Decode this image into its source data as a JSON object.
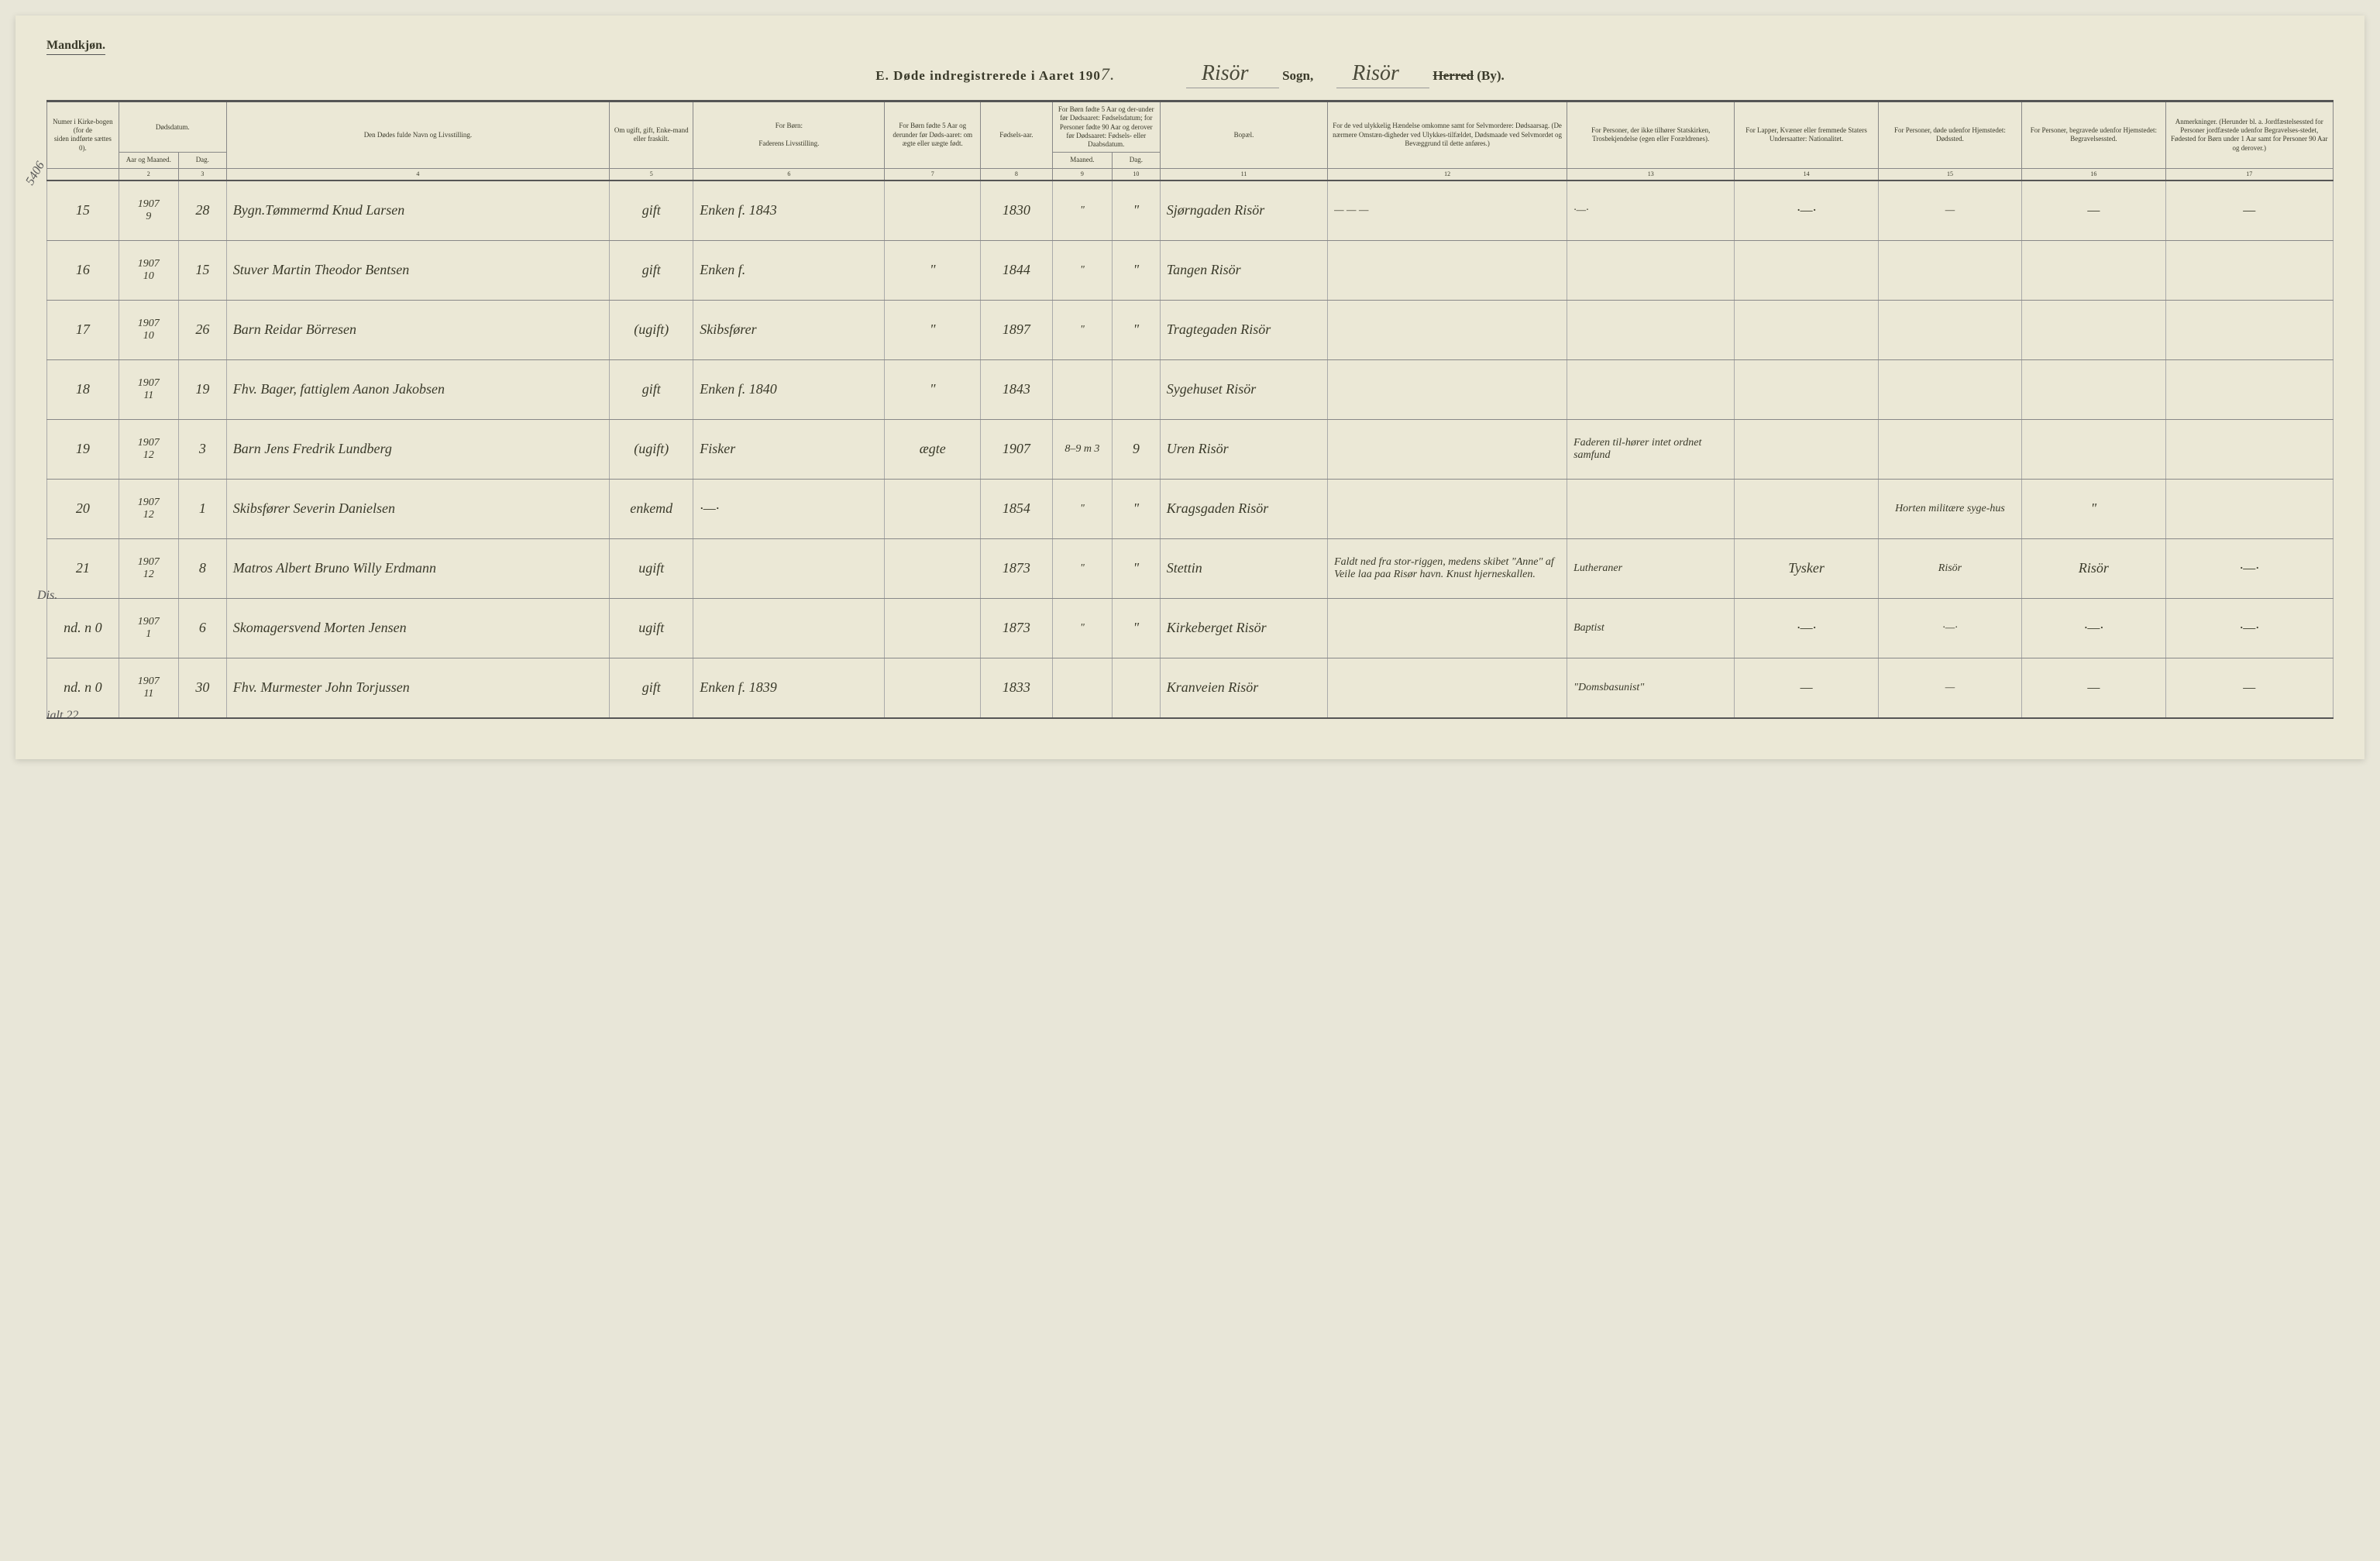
{
  "header": {
    "gender": "Mandkjøn.",
    "title_prefix": "E.  Døde indregistrerede i Aaret 190",
    "year_suffix": "7.",
    "sogn_value": "Risör",
    "sogn_label": "Sogn,",
    "herred_value": "Risör",
    "herred_strike": "Herred",
    "herred_by": "(By)."
  },
  "columns": {
    "c1a": "Numer i Kirke-bogen (for de",
    "c1b": "siden indførte sættes 0).",
    "c2": "Dødsdatum.",
    "c2a": "Aar og Maaned.",
    "c2b": "Dag.",
    "c4a": "Den Dødes fulde Navn og Livsstilling.",
    "c5": "Om ugift, gift, Enke-mand eller fraskilt.",
    "c6a": "For Børn:",
    "c6b": "Faderens Livsstilling.",
    "c7": "For Børn fødte 5 Aar og derunder før Døds-aaret: om ægte eller uægte født.",
    "c8": "Fødsels-aar.",
    "c9": "For Børn fødte 5 Aar og der-under før Dødsaaret: Fødselsdatum; for Personer fødte 90 Aar og derover før Dødsaaret: Fødsels- eller Daabsdatum.",
    "c9a": "Maaned.",
    "c9b": "Dag.",
    "c11": "Bopæl.",
    "c12": "For de ved ulykkelig Hændelse omkomne samt for Selvmordere: Dødsaarsag. (De nærmere Omstæn-digheder ved Ulykkes-tilfældet, Dødsmaade ved Selvmordet og Bevæggrund til dette anføres.)",
    "c13": "For Personer, der ikke tilhører Statskirken, Trosbekjendelse (egen eller Forældrenes).",
    "c14": "For Lapper, Kvæner eller fremmede Staters Undersaatter: Nationalitet.",
    "c15": "For Personer, døde udenfor Hjemstedet: Dødssted.",
    "c16": "For Personer, begravede udenfor Hjemstedet: Begravelsessted.",
    "c17": "Anmerkninger. (Herunder bl. a. Jordfæstelsessted for Personer jordfæstede udenfor Begravelses-stedet, Fødested for Børn under 1 Aar samt for Personer 90 Aar og derover.)"
  },
  "colnums": [
    "",
    "2",
    "3",
    "4",
    "5",
    "6",
    "7",
    "8",
    "9",
    "10",
    "11",
    "12",
    "13",
    "14",
    "15",
    "16",
    "17"
  ],
  "rows": [
    {
      "num": "15",
      "yr": "1907",
      "mo": "9",
      "day": "28",
      "name": "Bygn.Tømmermd Knud Larsen",
      "status": "gift",
      "father": "Enken f. 1843",
      "legit": "",
      "born": "1830",
      "bm": "\"",
      "bd": "\"",
      "place": "Sjørngaden Risör",
      "cause": "— — —",
      "faith": "·—·",
      "nat": "·—·",
      "dplace": "—",
      "bplace": "—",
      "note": "—"
    },
    {
      "num": "16",
      "yr": "1907",
      "mo": "10",
      "day": "15",
      "name": "Stuver Martin Theodor Bentsen",
      "status": "gift",
      "father": "Enken f.",
      "legit": "\"",
      "born": "1844",
      "bm": "\"",
      "bd": "\"",
      "place": "Tangen Risör",
      "cause": "",
      "faith": "",
      "nat": "",
      "dplace": "",
      "bplace": "",
      "note": ""
    },
    {
      "num": "17",
      "yr": "1907",
      "mo": "10",
      "day": "26",
      "name": "Barn Reidar Börresen",
      "status": "(ugift)",
      "father": "Skibsfører",
      "legit": "\"",
      "born": "1897",
      "bm": "\"",
      "bd": "\"",
      "place": "Tragtegaden Risör",
      "cause": "",
      "faith": "",
      "nat": "",
      "dplace": "",
      "bplace": "",
      "note": ""
    },
    {
      "num": "18",
      "yr": "1907",
      "mo": "11",
      "day": "19",
      "name": "Fhv. Bager, fattiglem Aanon Jakobsen",
      "status": "gift",
      "father": "Enken f. 1840",
      "legit": "\"",
      "born": "1843",
      "bm": "",
      "bd": "",
      "place": "Sygehuset Risör",
      "cause": "",
      "faith": "",
      "nat": "",
      "dplace": "",
      "bplace": "",
      "note": ""
    },
    {
      "num": "19",
      "yr": "1907",
      "mo": "12",
      "day": "3",
      "name": "Barn Jens Fredrik Lundberg",
      "status": "(ugift)",
      "father": "Fisker",
      "legit": "ægte",
      "born": "1907",
      "bm": "8–9 m  3",
      "bd": "9",
      "place": "Uren Risör",
      "cause": "",
      "faith": "Faderen til-hører intet ordnet samfund",
      "nat": "",
      "dplace": "",
      "bplace": "",
      "note": ""
    },
    {
      "num": "20",
      "yr": "1907",
      "mo": "12",
      "day": "1",
      "name": "Skibsfører Severin Danielsen",
      "status": "enkemd",
      "father": "·—·",
      "legit": "",
      "born": "1854",
      "bm": "\"",
      "bd": "\"",
      "place": "Kragsgaden Risör",
      "cause": "",
      "faith": "",
      "nat": "",
      "dplace": "Horten militære syge-hus",
      "bplace": "\"",
      "note": ""
    },
    {
      "num": "21",
      "yr": "1907",
      "mo": "12",
      "day": "8",
      "name": "Matros Albert Bruno Willy Erdmann",
      "status": "ugift",
      "father": "",
      "legit": "",
      "born": "1873",
      "bm": "\"",
      "bd": "\"",
      "place": "Stettin",
      "cause": "Faldt ned fra stor-riggen, medens skibet \"Anne\" af Veile laa paa Risør havn. Knust hjerneskallen.",
      "faith": "Lutheraner",
      "nat": "Tysker",
      "dplace": "Risör",
      "bplace": "Risör",
      "note": "·—·"
    },
    {
      "num": "nd. n 0",
      "yr": "1907",
      "mo": "1",
      "day": "6",
      "name": "Skomagersvend Morten Jensen",
      "status": "ugift",
      "father": "",
      "legit": "",
      "born": "1873",
      "bm": "\"",
      "bd": "\"",
      "place": "Kirkeberget Risör",
      "cause": "",
      "faith": "Baptist",
      "nat": "·—·",
      "dplace": "·—·",
      "bplace": "·—·",
      "note": "·—·"
    },
    {
      "num": "nd. n 0",
      "yr": "1907",
      "mo": "11",
      "day": "30",
      "name": "Fhv. Murmester John Torjussen",
      "status": "gift",
      "father": "Enken f. 1839",
      "legit": "",
      "born": "1833",
      "bm": "",
      "bd": "",
      "place": "Kranveien Risör",
      "cause": "",
      "faith": "\"Domsbasunist\"",
      "nat": "—",
      "dplace": "—",
      "bplace": "—",
      "note": "—"
    }
  ],
  "margin": {
    "n1": "5406",
    "n2": "Dis.",
    "n3": "ialt 22"
  }
}
